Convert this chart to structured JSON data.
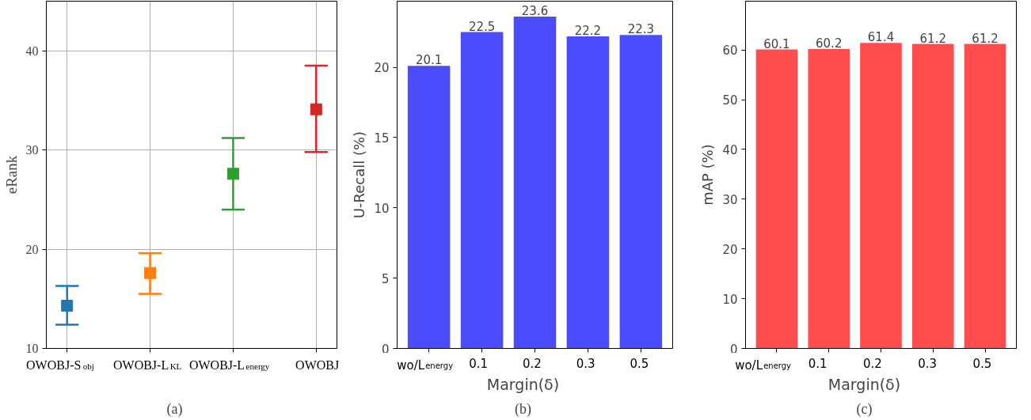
{
  "chart_data": [
    {
      "type": "scatter",
      "categories": [
        "OWOBJ-S$_{obj}$",
        "OWOBJ-L$_{KL}$",
        "OWOBJ-L$_{energy}$",
        "OWOBJ"
      ],
      "ylabel": "eRank",
      "annotations": [
        "(a)"
      ],
      "marker": "square",
      "colors": [
        "#1f77b4",
        "#ff7f0e",
        "#2ca02c",
        "#d62728"
      ],
      "values": [
        14.3,
        17.6,
        27.6,
        34.1
      ],
      "errors": [
        [
          12.4,
          16.3
        ],
        [
          15.5,
          19.6
        ],
        [
          24.0,
          31.2
        ],
        [
          29.8,
          38.5
        ]
      ],
      "ylim": [
        10,
        45
      ],
      "yticks": [
        10,
        20,
        30,
        40
      ],
      "grid": true
    },
    {
      "type": "bar",
      "categories": [
        "wo/L$_{energy}$",
        "0.1",
        "0.2",
        "0.3",
        "0.5"
      ],
      "xlabel": "Margin(δ)",
      "ylabel": "U-Recall (%)",
      "annotations": [
        "(b)"
      ],
      "color": "#4c4cff",
      "values": [
        20.1,
        22.5,
        23.6,
        22.2,
        22.3
      ],
      "data_labels": true,
      "ylim": [
        0,
        24.7
      ],
      "yticks": [
        0,
        5,
        10,
        15,
        20
      ]
    },
    {
      "type": "bar",
      "categories": [
        "wo/L$_{energy}$",
        "0.1",
        "0.2",
        "0.3",
        "0.5"
      ],
      "xlabel": "Margin(δ)",
      "ylabel": "mAP (%)",
      "annotations": [
        "(c)"
      ],
      "color": "#ff4c4c",
      "values": [
        60.1,
        60.2,
        61.4,
        61.2,
        61.2
      ],
      "data_labels": true,
      "ylim": [
        0,
        69.8
      ],
      "yticks": [
        0,
        10,
        20,
        30,
        40,
        50,
        60
      ]
    }
  ]
}
